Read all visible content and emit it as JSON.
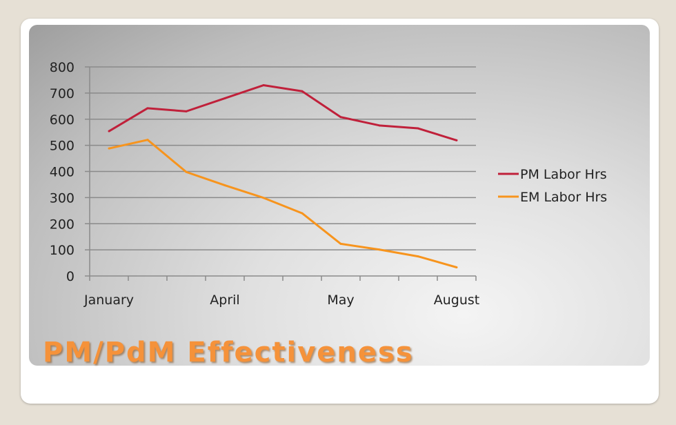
{
  "slide": {
    "title": "PM/PdM Effectiveness"
  },
  "chart_data": {
    "type": "line",
    "title": "",
    "xlabel": "",
    "ylabel": "",
    "categories": [
      "January",
      "",
      "",
      "April",
      "",
      "",
      "May",
      "",
      "",
      "August"
    ],
    "ylim": [
      0,
      800
    ],
    "yticks": [
      0,
      100,
      200,
      300,
      400,
      500,
      600,
      700,
      800
    ],
    "grid": true,
    "legend": "right",
    "series": [
      {
        "name": "PM Labor Hrs",
        "color": "#c0203a",
        "values": [
          554,
          642,
          630,
          680,
          730,
          707,
          608,
          576,
          565,
          519
        ]
      },
      {
        "name": "EM Labor Hrs",
        "color": "#f7941d",
        "values": [
          488,
          521,
          398,
          347,
          299,
          240,
          123,
          101,
          75,
          33
        ]
      }
    ]
  }
}
